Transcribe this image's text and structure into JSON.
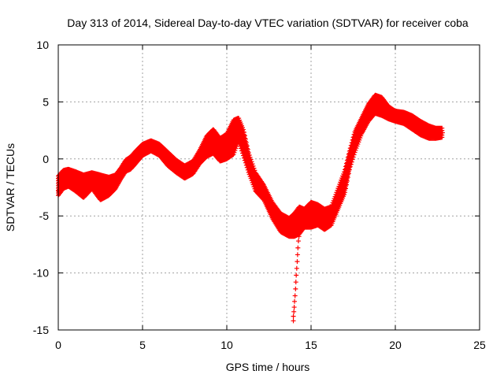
{
  "chart_data": {
    "type": "scatter",
    "title": "Day 313 of 2014, Sidereal Day-to-day VTEC variation (SDTVAR) for receiver coba",
    "xlabel": "GPS time / hours",
    "ylabel": "SDTVAR / TECUs",
    "xlim": [
      0,
      25
    ],
    "ylim": [
      -15,
      10
    ],
    "xticks": [
      0,
      5,
      10,
      15,
      20,
      25
    ],
    "yticks": [
      -15,
      -10,
      -5,
      0,
      5,
      10
    ],
    "xtick_labels": [
      "0",
      "5",
      "10",
      "15",
      "20",
      "25"
    ],
    "ytick_labels": [
      "-15",
      "-10",
      "-5",
      "0",
      "5",
      "10"
    ],
    "grid": true,
    "marker": "+",
    "color": "#ff0000",
    "series": [
      {
        "name": "SDTVAR",
        "points": [
          [
            0.0,
            -2.8
          ],
          [
            0.3,
            -1.8
          ],
          [
            0.6,
            -1.5
          ],
          [
            1.0,
            -1.8
          ],
          [
            1.5,
            -2.0
          ],
          [
            2.0,
            -1.6
          ],
          [
            2.5,
            -2.0
          ],
          [
            3.0,
            -2.3
          ],
          [
            3.4,
            -2.0
          ],
          [
            3.7,
            -1.2
          ],
          [
            4.0,
            -0.5
          ],
          [
            4.3,
            -0.3
          ],
          [
            4.6,
            0.2
          ],
          [
            5.0,
            0.8
          ],
          [
            5.5,
            1.2
          ],
          [
            6.0,
            0.8
          ],
          [
            6.5,
            0.0
          ],
          [
            7.0,
            -0.6
          ],
          [
            7.5,
            -1.2
          ],
          [
            8.0,
            -0.8
          ],
          [
            8.4,
            0.2
          ],
          [
            8.8,
            1.2
          ],
          [
            9.2,
            1.8
          ],
          [
            9.6,
            0.8
          ],
          [
            10.0,
            1.0
          ],
          [
            10.4,
            2.0
          ],
          [
            10.7,
            2.8
          ],
          [
            11.0,
            1.2
          ],
          [
            11.3,
            -0.5
          ],
          [
            11.7,
            -2.0
          ],
          [
            12.2,
            -3.0
          ],
          [
            12.7,
            -4.5
          ],
          [
            13.2,
            -5.5
          ],
          [
            13.7,
            -6.0
          ],
          [
            14.0,
            -6.2
          ],
          [
            14.3,
            -5.5
          ],
          [
            14.6,
            -5.2
          ],
          [
            15.0,
            -5.0
          ],
          [
            15.4,
            -4.8
          ],
          [
            15.8,
            -5.2
          ],
          [
            16.2,
            -5.0
          ],
          [
            16.6,
            -3.5
          ],
          [
            17.0,
            -2.0
          ],
          [
            17.3,
            0.0
          ],
          [
            17.6,
            1.5
          ],
          [
            18.0,
            3.0
          ],
          [
            18.4,
            4.0
          ],
          [
            18.8,
            4.8
          ],
          [
            19.2,
            4.5
          ],
          [
            19.6,
            4.0
          ],
          [
            20.0,
            3.8
          ],
          [
            20.5,
            3.6
          ],
          [
            21.0,
            3.3
          ],
          [
            21.5,
            2.8
          ],
          [
            22.0,
            2.4
          ],
          [
            22.4,
            2.2
          ],
          [
            22.8,
            2.3
          ]
        ],
        "band": [
          [
            0.0,
            -3.2,
            -1.5
          ],
          [
            0.3,
            -2.6,
            -1.0
          ],
          [
            0.6,
            -2.4,
            -0.9
          ],
          [
            1.0,
            -2.8,
            -1.1
          ],
          [
            1.5,
            -3.4,
            -1.4
          ],
          [
            2.0,
            -2.6,
            -1.2
          ],
          [
            2.5,
            -3.6,
            -1.4
          ],
          [
            3.0,
            -3.2,
            -1.6
          ],
          [
            3.4,
            -2.6,
            -1.4
          ],
          [
            3.7,
            -1.8,
            -0.8
          ],
          [
            4.0,
            -1.1,
            -0.1
          ],
          [
            4.3,
            -0.9,
            0.2
          ],
          [
            4.6,
            -0.4,
            0.7
          ],
          [
            5.0,
            0.3,
            1.3
          ],
          [
            5.5,
            0.7,
            1.6
          ],
          [
            6.0,
            0.3,
            1.3
          ],
          [
            6.5,
            -0.6,
            0.6
          ],
          [
            7.0,
            -1.2,
            -0.1
          ],
          [
            7.5,
            -1.7,
            -0.6
          ],
          [
            8.0,
            -1.3,
            -0.2
          ],
          [
            8.4,
            -0.4,
            0.8
          ],
          [
            8.8,
            0.2,
            2.0
          ],
          [
            9.2,
            0.5,
            2.6
          ],
          [
            9.6,
            -0.2,
            1.8
          ],
          [
            10.0,
            0.0,
            2.2
          ],
          [
            10.4,
            0.4,
            3.4
          ],
          [
            10.7,
            1.6,
            3.6
          ],
          [
            11.0,
            0.2,
            2.5
          ],
          [
            11.3,
            -1.2,
            0.5
          ],
          [
            11.7,
            -2.8,
            -1.2
          ],
          [
            12.2,
            -3.6,
            -2.3
          ],
          [
            12.7,
            -5.2,
            -3.8
          ],
          [
            13.2,
            -6.4,
            -4.8
          ],
          [
            13.7,
            -6.8,
            -5.2
          ],
          [
            14.0,
            -6.8,
            -4.8
          ],
          [
            14.3,
            -6.6,
            -4.2
          ],
          [
            14.6,
            -6.0,
            -4.4
          ],
          [
            15.0,
            -6.0,
            -3.8
          ],
          [
            15.4,
            -5.8,
            -4.0
          ],
          [
            15.8,
            -6.2,
            -4.4
          ],
          [
            16.2,
            -5.8,
            -4.2
          ],
          [
            16.6,
            -4.4,
            -2.6
          ],
          [
            17.0,
            -3.0,
            -1.0
          ],
          [
            17.3,
            -0.8,
            0.8
          ],
          [
            17.6,
            0.6,
            2.4
          ],
          [
            18.0,
            2.2,
            3.6
          ],
          [
            18.4,
            3.3,
            4.8
          ],
          [
            18.8,
            4.0,
            5.6
          ],
          [
            19.2,
            3.8,
            5.4
          ],
          [
            19.6,
            3.5,
            4.6
          ],
          [
            20.0,
            3.3,
            4.2
          ],
          [
            20.5,
            3.1,
            4.1
          ],
          [
            21.0,
            2.6,
            3.8
          ],
          [
            21.5,
            2.1,
            3.3
          ],
          [
            22.0,
            1.8,
            2.9
          ],
          [
            22.4,
            1.8,
            2.7
          ],
          [
            22.8,
            1.9,
            2.7
          ]
        ],
        "spike": [
          [
            13.95,
            -14.2
          ],
          [
            13.95,
            -13.8
          ],
          [
            13.98,
            -13.4
          ],
          [
            14.0,
            -13.0
          ],
          [
            14.02,
            -12.5
          ],
          [
            14.05,
            -12.0
          ],
          [
            14.08,
            -11.4
          ],
          [
            14.1,
            -10.8
          ],
          [
            14.12,
            -10.2
          ],
          [
            14.15,
            -9.6
          ],
          [
            14.18,
            -9.0
          ],
          [
            14.2,
            -8.4
          ],
          [
            14.22,
            -7.8
          ],
          [
            14.25,
            -7.2
          ],
          [
            14.28,
            -6.8
          ],
          [
            14.3,
            -6.4
          ]
        ]
      }
    ]
  }
}
